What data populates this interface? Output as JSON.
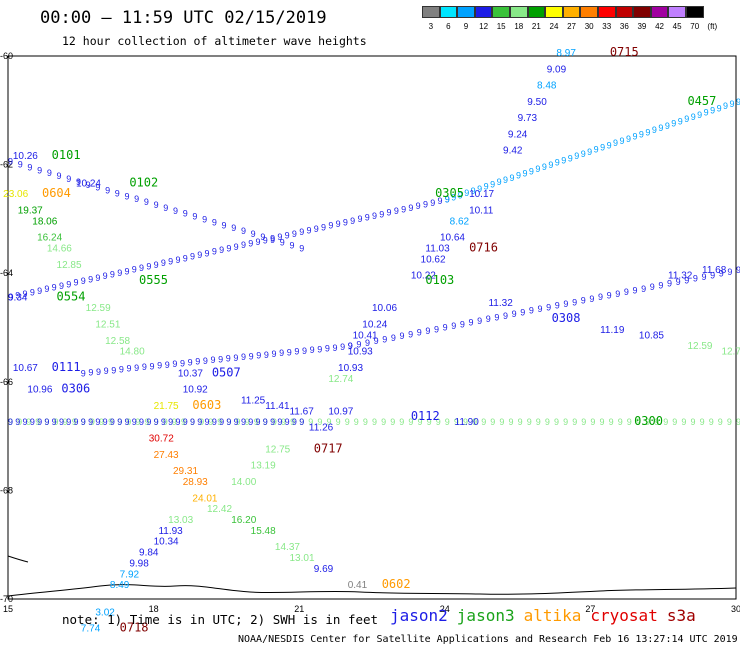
{
  "title": "00:00 – 11:59 UTC 02/15/2019",
  "subtitle": "12 hour collection of altimeter wave heights",
  "colorbar": {
    "unit": "(ft)",
    "labels": [
      "3",
      "6",
      "9",
      "12",
      "15",
      "18",
      "21",
      "24",
      "27",
      "30",
      "33",
      "36",
      "39",
      "42",
      "45",
      "70"
    ],
    "colors": [
      "#808080",
      "#00e5ff",
      "#00a2ff",
      "#1c1ce6",
      "#3ac23a",
      "#88e888",
      "#00a000",
      "#ffff00",
      "#ffb000",
      "#ff7f00",
      "#ff0000",
      "#c00000",
      "#800000",
      "#a000a0",
      "#c080ff",
      "#000000"
    ]
  },
  "axes": {
    "x_ticks": [
      "15",
      "18",
      "21",
      "24",
      "27",
      "30"
    ],
    "y_ticks": [
      "-60",
      "-62",
      "-64",
      "-66",
      "-68",
      "-70"
    ]
  },
  "note": "note: 1) Time is in UTC; 2) SWH is in feet",
  "legend": [
    {
      "name": "jason2",
      "color": "#1c1ce6"
    },
    {
      "name": "jason3",
      "color": "#1aa31a"
    },
    {
      "name": "altika",
      "color": "#ff9a00"
    },
    {
      "name": "cryosat",
      "color": "#e00000"
    },
    {
      "name": "s3a",
      "color": "#a00000"
    }
  ],
  "credit": "NOAA/NESDIS Center for Satellite Applications and Research    Feb 16 13:27:14 UTC 2019",
  "map_labels": [
    {
      "t": "8.97",
      "lon": 26.3,
      "lat": -60.0,
      "c": "#00a2ff"
    },
    {
      "t": "0715",
      "lon": 27.4,
      "lat": -60.0,
      "c": "#800000",
      "b": true
    },
    {
      "t": "9.09",
      "lon": 26.1,
      "lat": -60.3,
      "c": "#1c1ce6"
    },
    {
      "t": "8.48",
      "lon": 25.9,
      "lat": -60.6,
      "c": "#00a2ff"
    },
    {
      "t": "9.50",
      "lon": 25.7,
      "lat": -60.9,
      "c": "#1c1ce6"
    },
    {
      "t": "9.73",
      "lon": 25.5,
      "lat": -61.2,
      "c": "#1c1ce6"
    },
    {
      "t": "9.24",
      "lon": 25.3,
      "lat": -61.5,
      "c": "#1c1ce6"
    },
    {
      "t": "9.42",
      "lon": 25.2,
      "lat": -61.8,
      "c": "#1c1ce6"
    },
    {
      "t": "0457",
      "lon": 29.0,
      "lat": -60.9,
      "c": "#00a000",
      "b": true
    },
    {
      "t": "10.26",
      "lon": 15.1,
      "lat": -61.9,
      "c": "#1c1ce6"
    },
    {
      "t": "0101",
      "lon": 15.9,
      "lat": -61.9,
      "c": "#00a000",
      "b": true
    },
    {
      "t": "10.24",
      "lon": 16.4,
      "lat": -62.4,
      "c": "#1c1ce6"
    },
    {
      "t": "0102",
      "lon": 17.5,
      "lat": -62.4,
      "c": "#00a000",
      "b": true
    },
    {
      "t": "23.06",
      "lon": 14.9,
      "lat": -62.6,
      "c": "#e6e600"
    },
    {
      "t": "0604",
      "lon": 15.7,
      "lat": -62.6,
      "c": "#ff9a00",
      "b": true
    },
    {
      "t": "19.37",
      "lon": 15.2,
      "lat": -62.9,
      "c": "#00a000"
    },
    {
      "t": "18.06",
      "lon": 15.5,
      "lat": -63.1,
      "c": "#00a000"
    },
    {
      "t": "16.24",
      "lon": 15.6,
      "lat": -63.4,
      "c": "#3ac23a"
    },
    {
      "t": "14.66",
      "lon": 15.8,
      "lat": -63.6,
      "c": "#88e888"
    },
    {
      "t": "12.85",
      "lon": 16.0,
      "lat": -63.9,
      "c": "#88e888"
    },
    {
      "t": "0305",
      "lon": 23.8,
      "lat": -62.6,
      "c": "#00a000",
      "b": true
    },
    {
      "t": "10.17",
      "lon": 24.5,
      "lat": -62.6,
      "c": "#1c1ce6"
    },
    {
      "t": "10.11",
      "lon": 24.5,
      "lat": -62.9,
      "c": "#1c1ce6"
    },
    {
      "t": "8.62",
      "lon": 24.1,
      "lat": -63.1,
      "c": "#00a2ff"
    },
    {
      "t": "10.64",
      "lon": 23.9,
      "lat": -63.4,
      "c": "#1c1ce6"
    },
    {
      "t": "11.03",
      "lon": 23.6,
      "lat": -63.6,
      "c": "#1c1ce6"
    },
    {
      "t": "0716",
      "lon": 24.5,
      "lat": -63.6,
      "c": "#800000",
      "b": true
    },
    {
      "t": "10.62",
      "lon": 23.5,
      "lat": -63.8,
      "c": "#1c1ce6"
    },
    {
      "t": "10.22",
      "lon": 23.3,
      "lat": -64.1,
      "c": "#1c1ce6"
    },
    {
      "t": "0103",
      "lon": 23.6,
      "lat": -64.2,
      "c": "#00a000",
      "b": true
    },
    {
      "t": "0555",
      "lon": 17.7,
      "lat": -64.2,
      "c": "#00a000",
      "b": true
    },
    {
      "t": "9.34",
      "lon": 15.0,
      "lat": -64.5,
      "c": "#1c1ce6"
    },
    {
      "t": "0554",
      "lon": 16.0,
      "lat": -64.5,
      "c": "#00a000",
      "b": true
    },
    {
      "t": "12.59",
      "lon": 16.6,
      "lat": -64.7,
      "c": "#88e888"
    },
    {
      "t": "12.51",
      "lon": 16.8,
      "lat": -65.0,
      "c": "#88e888"
    },
    {
      "t": "12.58",
      "lon": 17.0,
      "lat": -65.3,
      "c": "#88e888"
    },
    {
      "t": "14.80",
      "lon": 17.3,
      "lat": -65.5,
      "c": "#88e888"
    },
    {
      "t": "10.06",
      "lon": 22.5,
      "lat": -64.7,
      "c": "#1c1ce6"
    },
    {
      "t": "10.24",
      "lon": 22.3,
      "lat": -65.0,
      "c": "#1c1ce6"
    },
    {
      "t": "10.41",
      "lon": 22.1,
      "lat": -65.2,
      "c": "#1c1ce6"
    },
    {
      "t": "10.93",
      "lon": 22.0,
      "lat": -65.5,
      "c": "#1c1ce6"
    },
    {
      "t": "10.93",
      "lon": 21.8,
      "lat": -65.8,
      "c": "#1c1ce6"
    },
    {
      "t": "12.74",
      "lon": 21.6,
      "lat": -66.0,
      "c": "#88e888"
    },
    {
      "t": "11.32",
      "lon": 24.9,
      "lat": -64.6,
      "c": "#1c1ce6"
    },
    {
      "t": "0308",
      "lon": 26.2,
      "lat": -64.9,
      "c": "#1c1ce6",
      "b": true
    },
    {
      "t": "11.19",
      "lon": 27.2,
      "lat": -65.1,
      "c": "#1c1ce6"
    },
    {
      "t": "10.85",
      "lon": 28.0,
      "lat": -65.2,
      "c": "#1c1ce6"
    },
    {
      "t": "12.59",
      "lon": 29.0,
      "lat": -65.4,
      "c": "#88e888"
    },
    {
      "t": "12.70",
      "lon": 29.7,
      "lat": -65.5,
      "c": "#88e888"
    },
    {
      "t": "11.32",
      "lon": 28.6,
      "lat": -64.1,
      "c": "#1c1ce6"
    },
    {
      "t": "11.68",
      "lon": 29.3,
      "lat": -64.0,
      "c": "#1c1ce6"
    },
    {
      "t": "10.67",
      "lon": 15.1,
      "lat": -65.8,
      "c": "#1c1ce6"
    },
    {
      "t": "0111",
      "lon": 15.9,
      "lat": -65.8,
      "c": "#1c1ce6",
      "b": true
    },
    {
      "t": "10.96",
      "lon": 15.4,
      "lat": -66.2,
      "c": "#1c1ce6"
    },
    {
      "t": "0306",
      "lon": 16.1,
      "lat": -66.2,
      "c": "#1c1ce6",
      "b": true
    },
    {
      "t": "0507",
      "lon": 19.2,
      "lat": -65.9,
      "c": "#1c1ce6",
      "b": true
    },
    {
      "t": "10.37",
      "lon": 18.5,
      "lat": -65.9,
      "c": "#1c1ce6"
    },
    {
      "t": "10.92",
      "lon": 18.6,
      "lat": -66.2,
      "c": "#1c1ce6"
    },
    {
      "t": "21.75",
      "lon": 18.0,
      "lat": -66.5,
      "c": "#e6e600"
    },
    {
      "t": "0603",
      "lon": 18.8,
      "lat": -66.5,
      "c": "#ff9a00",
      "b": true
    },
    {
      "t": "11.25",
      "lon": 19.8,
      "lat": -66.4,
      "c": "#1c1ce6"
    },
    {
      "t": "11.41",
      "lon": 20.3,
      "lat": -66.5,
      "c": "#1c1ce6"
    },
    {
      "t": "11.67",
      "lon": 20.8,
      "lat": -66.6,
      "c": "#1c1ce6"
    },
    {
      "t": "10.97",
      "lon": 21.6,
      "lat": -66.6,
      "c": "#1c1ce6"
    },
    {
      "t": "0112",
      "lon": 23.3,
      "lat": -66.7,
      "c": "#1c1ce6",
      "b": true
    },
    {
      "t": "11.90",
      "lon": 24.2,
      "lat": -66.8,
      "c": "#1c1ce6"
    },
    {
      "t": "0300",
      "lon": 27.9,
      "lat": -66.8,
      "c": "#00a000",
      "b": true
    },
    {
      "t": "30.72",
      "lon": 17.9,
      "lat": -67.1,
      "c": "#e00000"
    },
    {
      "t": "27.43",
      "lon": 18.0,
      "lat": -67.4,
      "c": "#ff7f00"
    },
    {
      "t": "29.31",
      "lon": 18.4,
      "lat": -67.7,
      "c": "#ff7f00"
    },
    {
      "t": "28.93",
      "lon": 18.6,
      "lat": -67.9,
      "c": "#ff7f00"
    },
    {
      "t": "24.01",
      "lon": 18.8,
      "lat": -68.2,
      "c": "#ffb000"
    },
    {
      "t": "12.42",
      "lon": 19.1,
      "lat": -68.4,
      "c": "#88e888"
    },
    {
      "t": "13.03",
      "lon": 18.3,
      "lat": -68.6,
      "c": "#88e888"
    },
    {
      "t": "16.20",
      "lon": 19.6,
      "lat": -68.6,
      "c": "#3ac23a"
    },
    {
      "t": "15.48",
      "lon": 20.0,
      "lat": -68.8,
      "c": "#3ac23a"
    },
    {
      "t": "14.37",
      "lon": 20.5,
      "lat": -69.1,
      "c": "#88e888"
    },
    {
      "t": "13.01",
      "lon": 20.8,
      "lat": -69.3,
      "c": "#88e888"
    },
    {
      "t": "12.75",
      "lon": 20.3,
      "lat": -67.3,
      "c": "#88e888"
    },
    {
      "t": "13.19",
      "lon": 20.0,
      "lat": -67.6,
      "c": "#88e888"
    },
    {
      "t": "14.00",
      "lon": 19.6,
      "lat": -67.9,
      "c": "#88e888"
    },
    {
      "t": "0717",
      "lon": 21.3,
      "lat": -67.3,
      "c": "#800000",
      "b": true
    },
    {
      "t": "11.26",
      "lon": 21.2,
      "lat": -66.9,
      "c": "#1c1ce6"
    },
    {
      "t": "11.93",
      "lon": 18.1,
      "lat": -68.8,
      "c": "#1c1ce6"
    },
    {
      "t": "10.34",
      "lon": 18.0,
      "lat": -69.0,
      "c": "#1c1ce6"
    },
    {
      "t": "9.84",
      "lon": 17.7,
      "lat": -69.2,
      "c": "#1c1ce6"
    },
    {
      "t": "9.98",
      "lon": 17.5,
      "lat": -69.4,
      "c": "#1c1ce6"
    },
    {
      "t": "7.92",
      "lon": 17.3,
      "lat": -69.6,
      "c": "#00a2ff"
    },
    {
      "t": "8.49",
      "lon": 17.1,
      "lat": -69.8,
      "c": "#00a2ff"
    },
    {
      "t": "9.69",
      "lon": 21.3,
      "lat": -69.5,
      "c": "#1c1ce6"
    },
    {
      "t": "0.41",
      "lon": 22.0,
      "lat": -69.8,
      "c": "#808080"
    },
    {
      "t": "0602",
      "lon": 22.7,
      "lat": -69.8,
      "c": "#ff9a00",
      "b": true
    },
    {
      "t": "3.02",
      "lon": 16.8,
      "lat": -70.3,
      "c": "#00a2ff"
    },
    {
      "t": "7.74",
      "lon": 16.5,
      "lat": -70.6,
      "c": "#00a2ff"
    },
    {
      "t": "0718",
      "lon": 17.3,
      "lat": -70.6,
      "c": "#800000",
      "b": true
    }
  ]
}
